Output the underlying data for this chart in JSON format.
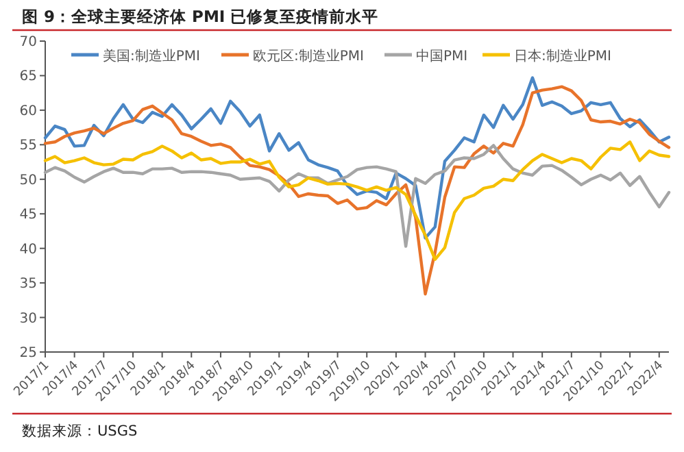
{
  "chart_data": {
    "type": "line",
    "title": "图 9：全球主要经济体 PMI 已修复至疫情前水平",
    "categories": [
      "2017/1",
      null,
      null,
      "2017/4",
      null,
      null,
      "2017/7",
      null,
      null,
      "2017/10",
      null,
      null,
      "2018/1",
      null,
      null,
      "2018/4",
      null,
      null,
      "2018/7",
      null,
      null,
      "2018/10",
      null,
      null,
      "2019/1",
      null,
      null,
      "2019/4",
      null,
      null,
      "2019/7",
      null,
      null,
      "2019/10",
      null,
      null,
      "2020/1",
      null,
      null,
      "2020/4",
      null,
      null,
      "2020/7",
      null,
      null,
      "2020/10",
      null,
      null,
      "2021/1",
      null,
      null,
      "2021/4",
      null,
      null,
      "2021/7",
      null,
      null,
      "2021/10",
      null,
      null,
      "2022/1",
      null,
      null,
      "2022/4",
      null
    ],
    "series": [
      {
        "name": "美国:制造业PMI",
        "color": "#4a86c5",
        "values": [
          56.0,
          57.7,
          57.2,
          54.8,
          54.9,
          57.8,
          56.3,
          58.8,
          60.8,
          58.7,
          58.2,
          59.7,
          59.1,
          60.8,
          59.3,
          57.3,
          58.7,
          60.2,
          58.1,
          61.3,
          59.8,
          57.7,
          59.3,
          54.1,
          56.6,
          54.2,
          55.3,
          52.8,
          52.1,
          51.7,
          51.2,
          49.1,
          47.8,
          48.3,
          48.1,
          47.2,
          50.9,
          50.1,
          49.1,
          41.5,
          43.1,
          52.6,
          54.2,
          56.0,
          55.4,
          59.3,
          57.5,
          60.7,
          58.7,
          60.8,
          64.7,
          60.7,
          61.2,
          60.6,
          59.5,
          59.9,
          61.1,
          60.8,
          61.1,
          58.8,
          57.6,
          58.6,
          57.1,
          55.4,
          56.1
        ]
      },
      {
        "name": "欧元区:制造业PMI",
        "color": "#e8732a",
        "values": [
          55.2,
          55.4,
          56.2,
          56.7,
          57.0,
          57.4,
          56.6,
          57.4,
          58.1,
          58.5,
          60.1,
          60.6,
          59.6,
          58.6,
          56.6,
          56.2,
          55.5,
          54.9,
          55.1,
          54.6,
          53.2,
          52.0,
          51.8,
          51.4,
          50.5,
          49.3,
          47.5,
          47.9,
          47.7,
          47.6,
          46.5,
          47.0,
          45.7,
          45.9,
          46.9,
          46.3,
          47.9,
          49.2,
          44.5,
          33.4,
          39.4,
          47.4,
          51.8,
          51.7,
          53.7,
          54.8,
          53.8,
          55.2,
          54.8,
          57.9,
          62.5,
          62.9,
          63.1,
          63.4,
          62.8,
          61.4,
          58.6,
          58.3,
          58.4,
          58.0,
          58.7,
          58.2,
          56.5,
          55.5,
          54.6
        ]
      },
      {
        "name": "中国PMI",
        "color": "#a5a5a5",
        "values": [
          51.0,
          51.7,
          51.2,
          50.3,
          49.6,
          50.4,
          51.1,
          51.6,
          51.0,
          51.0,
          50.8,
          51.5,
          51.5,
          51.6,
          51.0,
          51.1,
          51.1,
          51.0,
          50.8,
          50.6,
          50.0,
          50.1,
          50.2,
          49.7,
          48.3,
          49.9,
          50.8,
          50.2,
          50.2,
          49.4,
          49.9,
          50.4,
          51.4,
          51.7,
          51.8,
          51.5,
          51.1,
          40.3,
          50.1,
          49.4,
          50.7,
          51.2,
          52.8,
          53.1,
          53.0,
          53.6,
          54.9,
          53.0,
          51.5,
          50.9,
          50.6,
          51.9,
          52.0,
          51.3,
          50.3,
          49.2,
          50.0,
          50.6,
          49.9,
          50.9,
          49.1,
          50.4,
          48.1,
          46.0,
          48.1
        ]
      },
      {
        "name": "日本:制造业PMI",
        "color": "#f5c000",
        "values": [
          52.7,
          53.3,
          52.4,
          52.7,
          53.1,
          52.4,
          52.1,
          52.2,
          52.9,
          52.8,
          53.6,
          54.0,
          54.8,
          54.1,
          53.1,
          53.8,
          52.8,
          53.0,
          52.3,
          52.5,
          52.5,
          52.9,
          52.2,
          52.6,
          50.3,
          48.9,
          49.2,
          50.2,
          49.8,
          49.3,
          49.4,
          49.3,
          48.9,
          48.4,
          48.9,
          48.4,
          48.8,
          47.8,
          44.8,
          41.9,
          38.4,
          40.1,
          45.2,
          47.2,
          47.7,
          48.7,
          49.0,
          50.0,
          49.8,
          51.4,
          52.7,
          53.6,
          53.0,
          52.4,
          53.0,
          52.7,
          51.5,
          53.2,
          54.5,
          54.3,
          55.4,
          52.7,
          54.1,
          53.5,
          53.3
        ]
      }
    ],
    "ylim": [
      25,
      70
    ],
    "yticks": [
      25,
      30,
      35,
      40,
      45,
      50,
      55,
      60,
      65,
      70
    ],
    "legend": "top",
    "annotations": [
      "数据来源：USGS"
    ]
  }
}
